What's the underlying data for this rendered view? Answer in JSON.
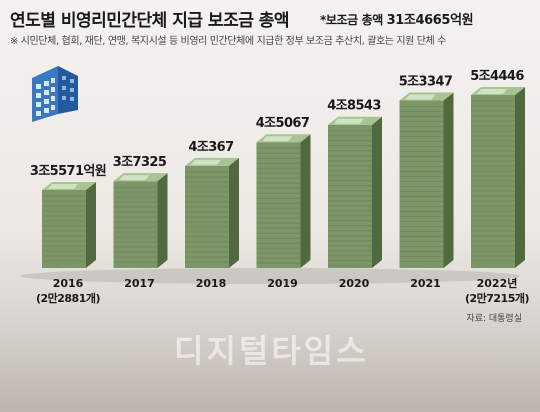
{
  "chart_data": {
    "type": "bar",
    "title": "연도별 비영리민간단체 지급 보조금 총액",
    "subtitle_prefix": "*보조금 총액 ",
    "subtitle_amount": "31조4665억원",
    "note": "※ 시민단체, 협회, 재단, 연맹, 복지시설 등 비영리 민간단체에 지급한 정부 보조금 추산치, 괄호는 지원 단체 수",
    "source": "자료: 대통령실",
    "categories": [
      "2016",
      "2017",
      "2018",
      "2019",
      "2020",
      "2021",
      "2022년"
    ],
    "category_sublabels": [
      "(2만2881개)",
      "",
      "",
      "",
      "",
      "",
      "(2만7215개)"
    ],
    "values": [
      35571,
      37325,
      40367,
      45067,
      48543,
      53347,
      54446
    ],
    "value_labels": [
      "3조5571억원",
      "3조7325",
      "4조367",
      "4조5067",
      "4조8543",
      "5조3347",
      "5조4446"
    ],
    "unit": "억원",
    "colors": {
      "bar_front": "#7c9668",
      "bar_side": "#52693f",
      "bar_top": "#a8c493",
      "cash": "#cfe4c2"
    }
  },
  "watermark": "디지털타임스",
  "icon": "office-building-icon"
}
